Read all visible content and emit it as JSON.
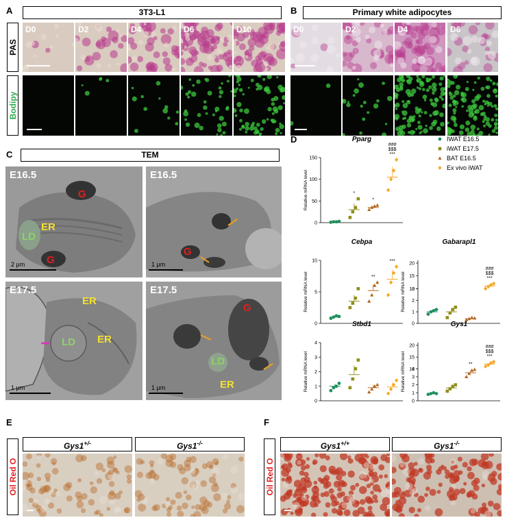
{
  "panels": {
    "A": {
      "letter": "A",
      "header": "3T3-L1",
      "row1": "PAS",
      "row2": "Bodipy",
      "days": [
        "D0",
        "D2",
        "D4",
        "D6",
        "D10"
      ]
    },
    "B": {
      "letter": "B",
      "header": "Primary white adipocytes",
      "days": [
        "D0",
        "D2",
        "D4",
        "D6"
      ]
    },
    "C": {
      "letter": "C",
      "header": "TEM",
      "images": [
        {
          "label": "E16.5",
          "scale": "2 μm"
        },
        {
          "label": "E16.5",
          "scale": "1 μm"
        },
        {
          "label": "E17.5",
          "scale": "1 μm"
        },
        {
          "label": "E17.5",
          "scale": "1 μm"
        }
      ],
      "organelles": {
        "G": "G",
        "ER": "ER",
        "LD": "LD"
      }
    },
    "D": {
      "letter": "D",
      "legend": [
        "IWAT E16.5",
        "iWAT E17.5",
        "BAT E16.5",
        "Ex vivo iWAT"
      ],
      "ylabel": "Relative mRNA level"
    },
    "E": {
      "letter": "E",
      "row": "Oil Red O",
      "genotypes": [
        "Gys1+/-",
        "Gys1-/-"
      ]
    },
    "F": {
      "letter": "F",
      "row": "Oil Red O",
      "genotypes": [
        "Gys1+/+",
        "Gys1-/-"
      ]
    }
  },
  "colors": {
    "iwat165": "#1f8f5f",
    "iwat175": "#8e8e1a",
    "bat165": "#b5651d",
    "exvivo": "#f5a623",
    "pas": "#b83a8e",
    "bodipy": "#3cc83c",
    "oil": "#c8502a"
  },
  "chart_data": [
    {
      "type": "scatter",
      "title": "Pparg",
      "ylabel": "Relative mRNA level",
      "ylim": [
        0,
        150
      ],
      "yticks": [
        0,
        50,
        100,
        150
      ],
      "groups": [
        "IWAT E16.5",
        "iWAT E17.5",
        "BAT E16.5",
        "Ex vivo iWAT"
      ],
      "means": [
        2,
        30,
        35,
        105
      ],
      "points": [
        [
          1,
          2,
          2,
          3
        ],
        [
          12,
          25,
          35,
          55
        ],
        [
          30,
          35,
          38,
          40
        ],
        [
          75,
          100,
          120,
          145
        ]
      ],
      "sig": [
        "",
        "*",
        "*",
        "###\n$$$\n***"
      ]
    },
    {
      "type": "scatter",
      "title": "Cebpa",
      "ylabel": "Relative mRNA level",
      "ylim": [
        0,
        10
      ],
      "yticks": [
        0,
        5,
        10
      ],
      "groups": [
        "IWAT E16.5",
        "iWAT E17.5",
        "BAT E16.5",
        "Ex vivo iWAT"
      ],
      "means": [
        1,
        3.5,
        5.2,
        7
      ],
      "points": [
        [
          0.8,
          1,
          1.2,
          1.1
        ],
        [
          2.5,
          3.2,
          4,
          5.5
        ],
        [
          3.5,
          4.5,
          6,
          6.5
        ],
        [
          4.5,
          6.5,
          8,
          9
        ]
      ],
      "sig": [
        "",
        "",
        "**",
        "***"
      ]
    },
    {
      "type": "scatter",
      "title": "Gabarapl1",
      "ylabel": "Relative mRNA level",
      "ylim": [
        0,
        20
      ],
      "yticks": [
        0,
        1,
        2,
        3,
        10,
        15,
        20
      ],
      "groups": [
        "IWAT E16.5",
        "iWAT E17.5",
        "BAT E16.5",
        "Ex vivo iWAT"
      ],
      "means": [
        1,
        1,
        0.4,
        11
      ],
      "points": [
        [
          0.8,
          1,
          1.1,
          1.2
        ],
        [
          0.5,
          0.9,
          1.2,
          1.4
        ],
        [
          0.3,
          0.4,
          0.5,
          0.45
        ],
        [
          10,
          10.8,
          11.5,
          12
        ]
      ],
      "sig": [
        "",
        "",
        "",
        "###\n$$$\n***"
      ]
    },
    {
      "type": "scatter",
      "title": "Stbd1",
      "ylabel": "Relative mRNA level",
      "ylim": [
        0,
        4
      ],
      "yticks": [
        0,
        1,
        2,
        3,
        4
      ],
      "groups": [
        "IWAT E16.5",
        "iWAT E17.5",
        "BAT E16.5",
        "Ex vivo iWAT"
      ],
      "means": [
        1,
        1.8,
        0.9,
        0.95
      ],
      "points": [
        [
          0.7,
          0.9,
          1,
          1.2
        ],
        [
          0.9,
          1.5,
          2.2,
          2.8
        ],
        [
          0.6,
          0.8,
          1,
          1.1
        ],
        [
          0.5,
          0.8,
          1.1,
          1.4
        ]
      ],
      "sig": [
        "",
        "",
        "",
        ""
      ]
    },
    {
      "type": "scatter",
      "title": "Gys1",
      "ylabel": "Relative mRNA level",
      "ylim": [
        0,
        20
      ],
      "yticks": [
        0,
        1,
        2,
        3,
        4,
        10,
        15,
        20
      ],
      "groups": [
        "IWAT E16.5",
        "iWAT E17.5",
        "BAT E16.5",
        "Ex vivo iWAT"
      ],
      "means": [
        0.9,
        1.6,
        3.5,
        12
      ],
      "points": [
        [
          0.8,
          0.9,
          1,
          0.9
        ],
        [
          1.2,
          1.5,
          1.8,
          2
        ],
        [
          3,
          3.4,
          3.8,
          3.9
        ],
        [
          11,
          11.6,
          12.5,
          13
        ]
      ],
      "sig": [
        "",
        "",
        "**",
        "###\n$$$\n***"
      ]
    }
  ]
}
